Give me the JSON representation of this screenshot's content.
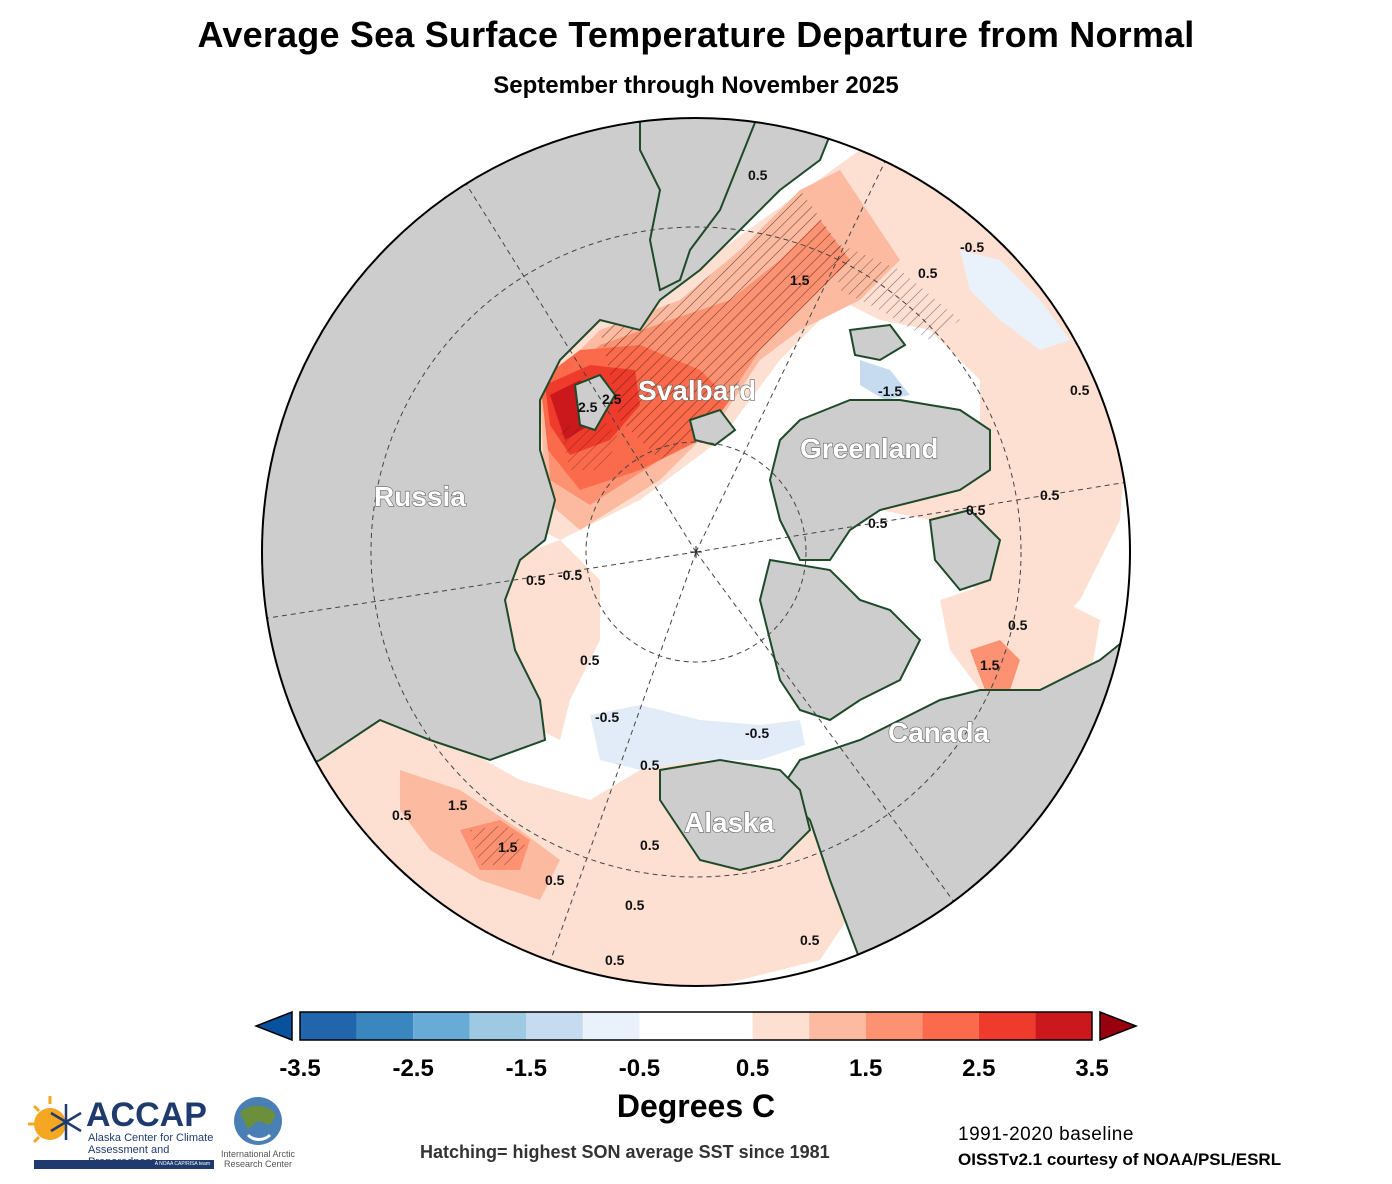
{
  "header": {
    "title": "Average Sea Surface Temperature Departure from Normal",
    "subtitle": "September through November 2025"
  },
  "map": {
    "projection": "north polar stereographic",
    "region_labels": {
      "russia": "Russia",
      "svalbard": "Svalbard",
      "greenland": "Greenland",
      "canada": "Canada",
      "alaska": "Alaska"
    },
    "contour_labels": [
      "0.5",
      "1.5",
      "2.5",
      "-0.5",
      "0.5",
      "0.5",
      "0.5",
      "-0.5",
      "0.5",
      "0.5",
      "1.5",
      "0.5",
      "1.5",
      "0.5",
      "0.5",
      "0.5",
      "0.5",
      "-0.5",
      "0.5",
      "2.5",
      "-1.5",
      "1.5",
      "0.5",
      "0.5",
      "0.5",
      "0.5",
      "-0.5"
    ],
    "colors": {
      "land": "#cdcdcd",
      "coastline": "#1e4a2a",
      "ocean_neutral": "#ffffff"
    }
  },
  "colorbar": {
    "ticks": [
      "-3.5",
      "-2.5",
      "-1.5",
      "-0.5",
      "0.5",
      "1.5",
      "2.5",
      "3.5"
    ],
    "title": "Degrees C",
    "colors": [
      "#2166ac",
      "#3a87c0",
      "#68abd6",
      "#9dc9e2",
      "#c6dbef",
      "#e9f1fb",
      "#ffffff",
      "#ffffff",
      "#fde0d2",
      "#fcbba1",
      "#fc9272",
      "#fb6a4a",
      "#ef3b2c",
      "#cb181d"
    ],
    "under_color": "#08519c",
    "over_color": "#99000d"
  },
  "footer": {
    "hatching_note": "Hatching= highest SON average SST since 1981",
    "baseline": "1991-2020 baseline",
    "source": "OISSTv2.1 courtesy of NOAA/PSL/ESRL",
    "accap_name": "ACCAP",
    "accap_line1": "Alaska Center for Climate",
    "accap_line2": "Assessment and Preparedness",
    "accap_line3": "A NOAA CAP/RISA team",
    "iarc_line1": "International Arctic",
    "iarc_line2": "Research Center"
  }
}
